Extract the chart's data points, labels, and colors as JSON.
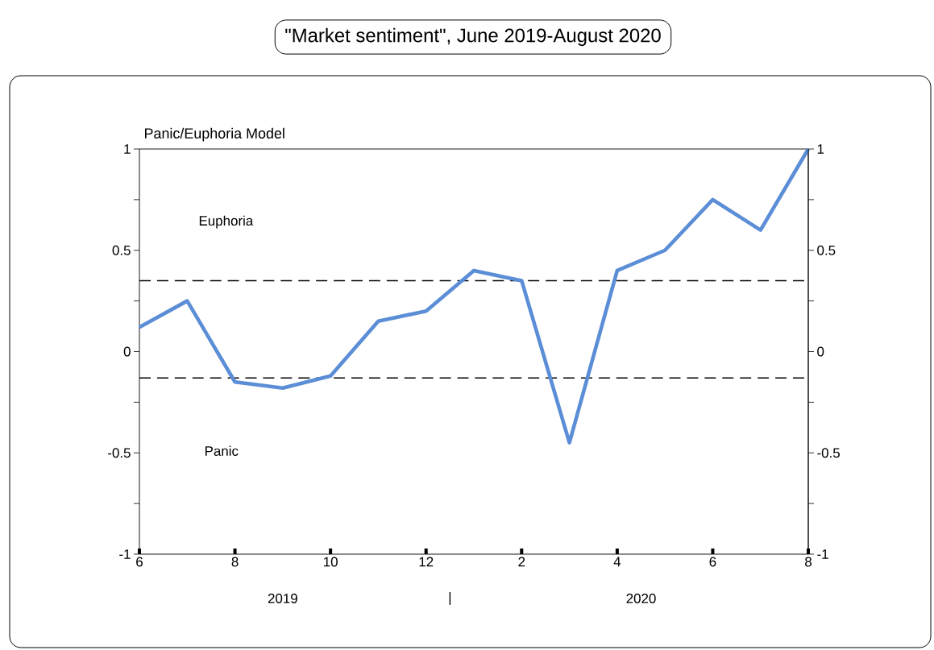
{
  "chart_data": {
    "type": "line",
    "title": "\"Market sentiment\", June 2019-August 2020",
    "subtitle": "Panic/Euphoria Model",
    "categories": [
      "6",
      null,
      "8",
      null,
      "10",
      null,
      "12",
      null,
      "2",
      null,
      "4",
      null,
      "6",
      null,
      "8"
    ],
    "series": [
      {
        "color": "#5b8ed6",
        "values": [
          0.12,
          0.25,
          -0.15,
          -0.18,
          -0.12,
          0.15,
          0.2,
          0.4,
          0.35,
          -0.45,
          0.4,
          0.5,
          0.75,
          0.6,
          1.0
        ]
      }
    ],
    "ylim": [
      -1,
      1
    ],
    "yticks": [
      -1,
      {
        "value": -0.75,
        "label": null
      },
      -0.5,
      {
        "value": -0.25,
        "label": null
      },
      0,
      {
        "value": 0.25,
        "label": null
      },
      0.5,
      {
        "value": 0.75,
        "label": null
      },
      1
    ],
    "y2lim": [
      -1,
      1
    ],
    "y2ticks": [
      -1,
      {
        "value": -0.75,
        "label": null
      },
      -0.5,
      {
        "value": -0.25,
        "label": null
      },
      0,
      {
        "value": 0.25,
        "label": null
      },
      0.5,
      {
        "value": 0.75,
        "label": null
      },
      1
    ],
    "ref_lines": [
      {
        "axis": "y",
        "value": 0.35,
        "color": "#000000",
        "line_style": "dashed"
      },
      {
        "axis": "y",
        "value": -0.13,
        "color": "#000000",
        "line_style": "dashed"
      }
    ],
    "annotations": [
      "Euphoria",
      "Panic",
      "2019",
      "|",
      "2020"
    ],
    "grid": false,
    "marker": "none",
    "line_style": "solid"
  }
}
